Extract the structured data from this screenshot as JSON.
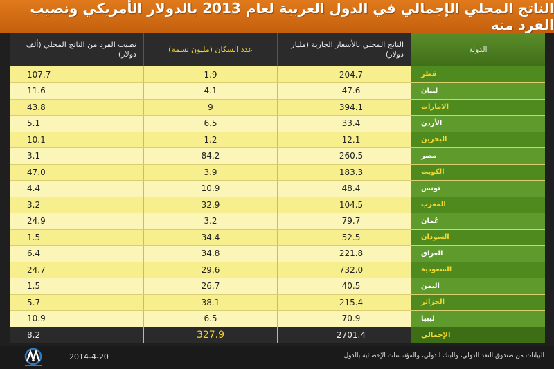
{
  "title": "الناتج المحلي الإجمالي في الدول العربية لعام 2013 بالدولار الأمريكي ونصيب الفرد منه",
  "footer": {
    "source": "البيانات من صندوق النقد الدولي، والبنك الدولي، والمؤسسات الإحصائية بالدول",
    "date": "2014-4-20",
    "logo_text": "ANADOLU AGENCY"
  },
  "colors": {
    "title_bar": "#d86e16",
    "country_col": "#4f8a1e",
    "value_cells": "#f7ee8e",
    "highlight_text": "#f2d431"
  },
  "chart_data": {
    "type": "table",
    "columns": [
      "الدولة",
      "الناتج المحلي بالأسعار الجارية (مليار دولار)",
      "عدد السكان (مليون نسمة)",
      "نصيب الفرد من الناتج المحلي (ألف دولار)"
    ],
    "rows": [
      {
        "country": "قطر",
        "gdp": "204.7",
        "pop": "1.9",
        "pc": "107.7"
      },
      {
        "country": "لبنان",
        "gdp": "47.6",
        "pop": "4.1",
        "pc": "11.6"
      },
      {
        "country": "الامارات",
        "gdp": "394.1",
        "pop": "9",
        "pc": "43.8"
      },
      {
        "country": "الأردن",
        "gdp": "33.4",
        "pop": "6.5",
        "pc": "5.1"
      },
      {
        "country": "البحرين",
        "gdp": "12.1",
        "pop": "1.2",
        "pc": "10.1"
      },
      {
        "country": "مصر",
        "gdp": "260.5",
        "pop": "84.2",
        "pc": "3.1"
      },
      {
        "country": "الكويت",
        "gdp": "183.3",
        "pop": "3.9",
        "pc": "47.0"
      },
      {
        "country": "تونس",
        "gdp": "48.4",
        "pop": "10.9",
        "pc": "4.4"
      },
      {
        "country": "المغرب",
        "gdp": "104.5",
        "pop": "32.9",
        "pc": "3.2"
      },
      {
        "country": "عُمان",
        "gdp": "79.7",
        "pop": "3.2",
        "pc": "24.9"
      },
      {
        "country": "السودان",
        "gdp": "52.5",
        "pop": "34.4",
        "pc": "1.5"
      },
      {
        "country": "العراق",
        "gdp": "221.8",
        "pop": "34.8",
        "pc": "6.4"
      },
      {
        "country": "السعودية",
        "gdp": "732.0",
        "pop": "29.6",
        "pc": "24.7"
      },
      {
        "country": "اليمن",
        "gdp": "40.5",
        "pop": "26.7",
        "pc": "1.5"
      },
      {
        "country": "الجزائر",
        "gdp": "215.4",
        "pop": "38.1",
        "pc": "5.7"
      },
      {
        "country": "ليبيا",
        "gdp": "70.9",
        "pop": "6.5",
        "pc": "10.9"
      }
    ],
    "total": {
      "country": "الإجمالي",
      "gdp": "2701.4",
      "pop": "327.9",
      "pc": "8.2"
    }
  }
}
